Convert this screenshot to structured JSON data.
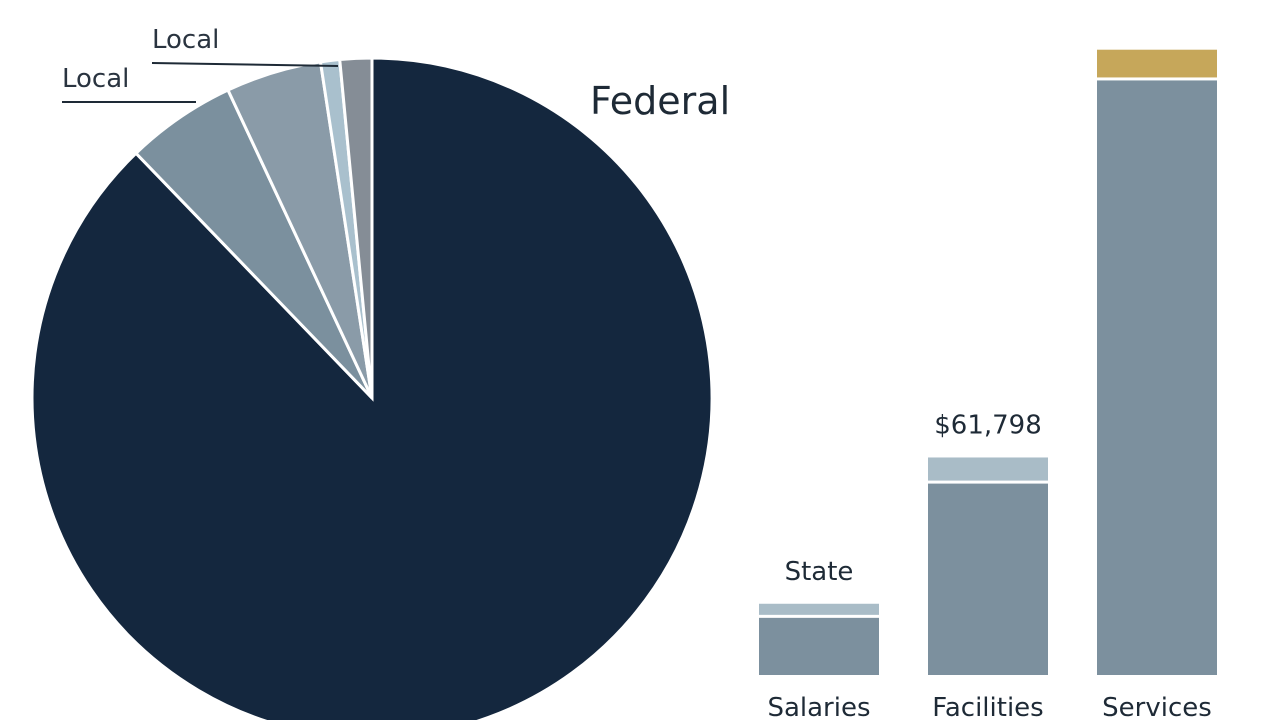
{
  "chart_data": [
    {
      "type": "pie",
      "slices": [
        {
          "label": "Federal",
          "value": 87.0,
          "color": "#14273e"
        },
        {
          "label": "Local",
          "value": 5.2,
          "color": "#7b909e"
        },
        {
          "label": "",
          "value": 4.5,
          "color": "#8a9ba8"
        },
        {
          "label": "",
          "value": 0.9,
          "color": "#a9c0cd"
        },
        {
          "label": "Local",
          "value": 1.5,
          "color": "#858d96"
        }
      ],
      "labels": {
        "federal": "Federal",
        "local_upper": "Local",
        "local_lower": "Local"
      }
    },
    {
      "type": "bar",
      "stacked": true,
      "categories": [
        "Salaries",
        "Facilities",
        "Services"
      ],
      "series": [
        {
          "values": [
            61798,
            207000,
            643000
          ],
          "color": "#7c909e"
        },
        {
          "values": [
            12000,
            25000,
            30000
          ],
          "color": "#a9bcc7"
        }
      ],
      "top_segment_colors": [
        "#a9bcc7",
        "#a9bcc7",
        "#c6a75a"
      ],
      "annotations": [
        "State",
        "$61,798",
        ""
      ],
      "ylim": [
        0,
        730000
      ]
    }
  ]
}
